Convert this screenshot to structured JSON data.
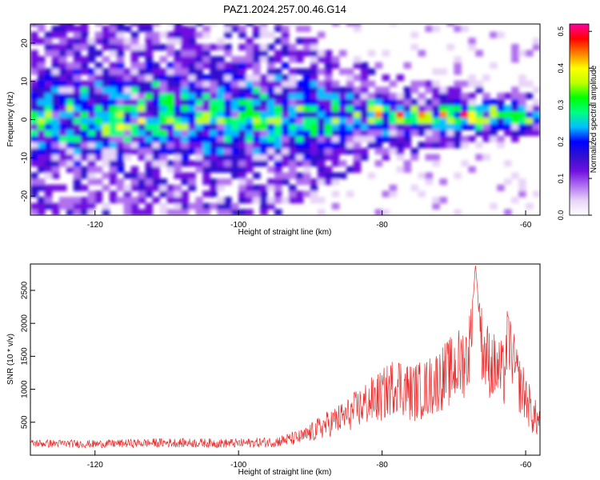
{
  "title": "PAZ1.2024.257.00.46.G14",
  "chart_data": [
    {
      "type": "heatmap",
      "xlabel": "Height of straight line (km)",
      "ylabel": "Frequency (Hz)",
      "xlim": [
        -129,
        -58
      ],
      "ylim": [
        -25,
        25
      ],
      "x_ticks": [
        -120,
        -100,
        -80,
        -60
      ],
      "y_ticks": [
        -20,
        -10,
        0,
        10,
        20
      ],
      "colorbar": {
        "label": "Normalized spectral amplitude",
        "range": [
          0,
          0.52
        ],
        "ticks": [
          0,
          0.1,
          0.2,
          0.3,
          0.4,
          0.5
        ],
        "colors": [
          "#ffffff",
          "#e8d4f8",
          "#b070f0",
          "#7010e0",
          "#3010d0",
          "#0000ff",
          "#00c0ff",
          "#00ff80",
          "#00ff00",
          "#c0ff00",
          "#ffff00",
          "#ff8000",
          "#ff0000",
          "#ff00a0"
        ]
      },
      "signal_track": [
        {
          "x": -120,
          "amp": 0.22
        },
        {
          "x": -113,
          "amp": 0.25
        },
        {
          "x": -103,
          "amp": 0.21
        },
        {
          "x": -90,
          "amp": 0.24
        },
        {
          "x": -80,
          "amp": 0.28
        },
        {
          "x": -75,
          "amp": 0.32
        },
        {
          "x": -70,
          "amp": 0.38
        },
        {
          "x": -65,
          "amp": 0.45
        },
        {
          "x": -62,
          "amp": 0.48
        },
        {
          "x": -59,
          "amp": 0.4
        }
      ],
      "spread_hz_by_height": [
        {
          "x": -129,
          "halfwidth": 25
        },
        {
          "x": -95,
          "halfwidth": 25
        },
        {
          "x": -85,
          "halfwidth": 15
        },
        {
          "x": -75,
          "halfwidth": 9
        },
        {
          "x": -58,
          "halfwidth": 5
        }
      ]
    },
    {
      "type": "line",
      "xlabel": "Height of straight line (km)",
      "ylabel": "SNR (10 * v/v)",
      "xlim": [
        -129,
        -58
      ],
      "ylim": [
        0,
        2900
      ],
      "x_ticks": [
        -120,
        -100,
        -80,
        -60
      ],
      "y_ticks": [
        500,
        1000,
        1500,
        2000,
        2500
      ],
      "series": [
        {
          "color": "#e83030",
          "x": [
            -129,
            -120,
            -110,
            -100,
            -95,
            -91,
            -88,
            -85,
            -82,
            -80,
            -78,
            -76,
            -74,
            -72,
            -70,
            -68,
            -67.5,
            -67,
            -66,
            -65,
            -63,
            -62.5,
            -61,
            -60,
            -59,
            -58
          ],
          "values": [
            180,
            170,
            190,
            180,
            200,
            280,
            450,
            600,
            800,
            900,
            1100,
            950,
            1000,
            1150,
            1300,
            1500,
            2000,
            2900,
            1600,
            1400,
            1200,
            1800,
            1100,
            900,
            600,
            500
          ],
          "noise": [
            60,
            60,
            70,
            70,
            80,
            120,
            200,
            250,
            350,
            400,
            450,
            450,
            450,
            500,
            550,
            600,
            400,
            0,
            600,
            550,
            500,
            500,
            450,
            400,
            300,
            250
          ]
        }
      ]
    }
  ]
}
